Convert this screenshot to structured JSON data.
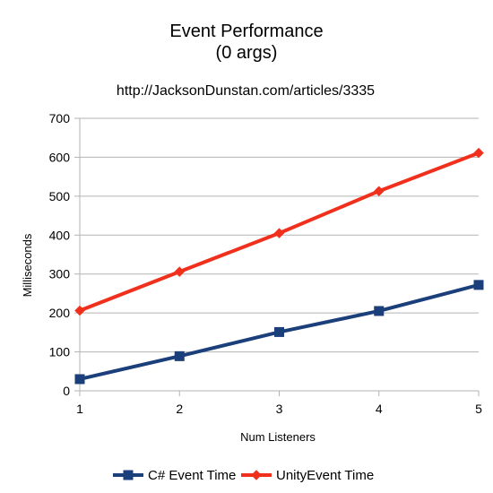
{
  "chart_data": {
    "type": "line",
    "title_lines": [
      "Event Performance",
      "(0 args)"
    ],
    "subtitle": "http://JacksonDunstan.com/articles/3335",
    "xlabel": "Num Listeners",
    "ylabel": "Milliseconds",
    "x": [
      1,
      2,
      3,
      4,
      5
    ],
    "x_tick_labels": [
      "1",
      "2",
      "3",
      "4",
      "5"
    ],
    "ylim": [
      0,
      700
    ],
    "y_ticks": [
      0,
      100,
      200,
      300,
      400,
      500,
      600,
      700
    ],
    "y_tick_labels": [
      "0",
      "100",
      "200",
      "300",
      "400",
      "500",
      "600",
      "700"
    ],
    "grid": "horizontal",
    "legend_position": "bottom",
    "series": [
      {
        "name": "C# Event Time",
        "values": [
          30,
          89,
          151,
          205,
          272
        ],
        "color": "#1a3f7a",
        "marker": "square"
      },
      {
        "name": "UnityEvent Time",
        "values": [
          206,
          306,
          405,
          513,
          611
        ],
        "color": "#f0301c",
        "marker": "diamond"
      }
    ]
  }
}
